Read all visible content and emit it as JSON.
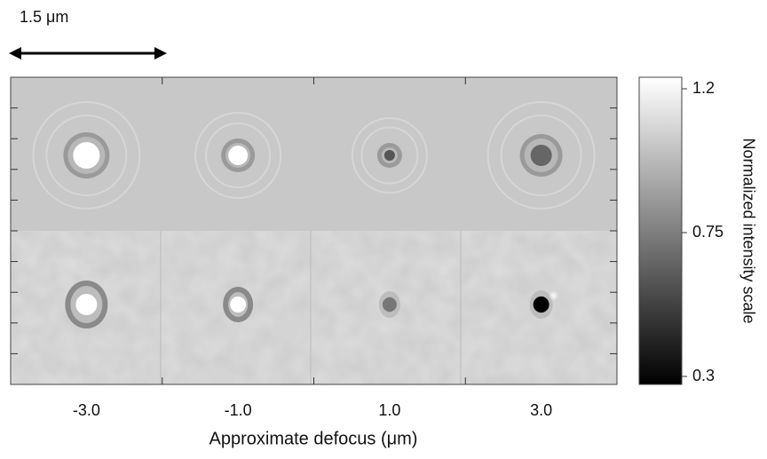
{
  "figure": {
    "scale_bar": {
      "label": "1.5 μm"
    },
    "columns": [
      "-3.0",
      "-1.0",
      "1.0",
      "3.0"
    ],
    "x_label": "Approximate defocus (μm)",
    "colorbar": {
      "label": "Normalized intensity scale",
      "lim": [
        0.3,
        1.2
      ],
      "ticks": [
        0.3,
        0.75,
        1.2
      ]
    }
  }
}
